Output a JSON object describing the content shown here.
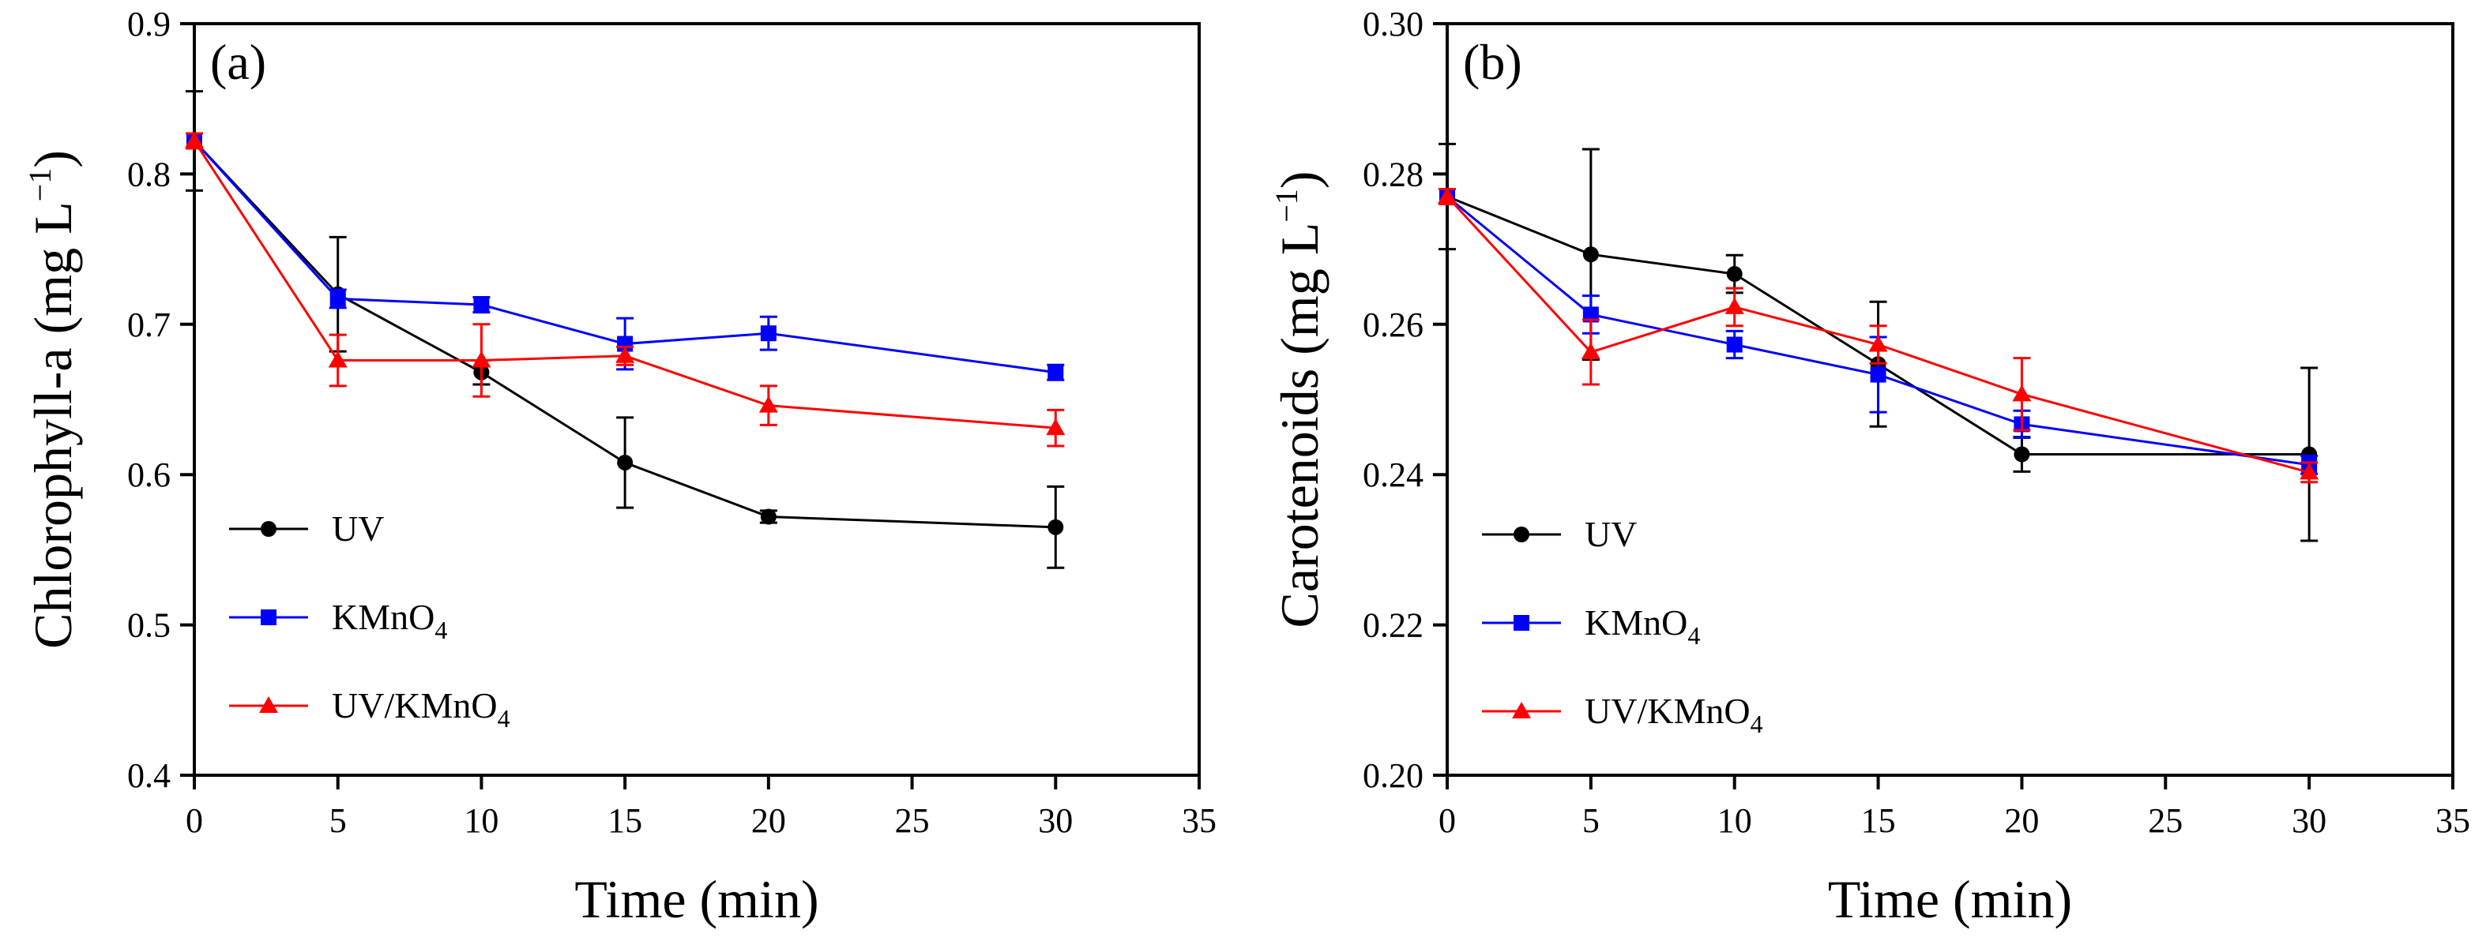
{
  "chart_data": [
    {
      "type": "line",
      "panel_label": "(a)",
      "xlabel": "Time (min)",
      "ylabel": {
        "main": "Chlorophyll-a (mg L",
        "sup": "−1",
        "close": ")"
      },
      "xlim": [
        0,
        35
      ],
      "ylim": [
        0.4,
        0.9
      ],
      "xticks": [
        0,
        5,
        10,
        15,
        20,
        25,
        30,
        35
      ],
      "yticks": [
        0.4,
        0.5,
        0.6,
        0.7,
        0.8,
        0.9
      ],
      "ytick_labels": [
        "0.4",
        "0.5",
        "0.6",
        "0.7",
        "0.8",
        "0.9"
      ],
      "legend_position": "lower-left",
      "series": [
        {
          "name": "UV",
          "label_main": "UV",
          "label_sub": "",
          "label_tail": "",
          "color": "#000000",
          "marker": "circle",
          "x": [
            0,
            5,
            10,
            15,
            20,
            30
          ],
          "y": [
            0.822,
            0.72,
            0.668,
            0.608,
            0.572,
            0.565
          ],
          "err": [
            0.033,
            0.038,
            0.008,
            0.03,
            0.004,
            0.027
          ]
        },
        {
          "name": "KMnO4",
          "label_main": "KMnO",
          "label_sub": "4",
          "label_tail": "",
          "color": "#0000ff",
          "marker": "square",
          "x": [
            0,
            5,
            10,
            15,
            20,
            30
          ],
          "y": [
            0.822,
            0.717,
            0.713,
            0.687,
            0.694,
            0.668
          ],
          "err": [
            0.005,
            0.006,
            0.005,
            0.017,
            0.011,
            0.005
          ]
        },
        {
          "name": "UV/KMnO4",
          "label_main": "UV/KMnO",
          "label_sub": "4",
          "label_tail": "",
          "color": "#ff0000",
          "marker": "triangle",
          "x": [
            0,
            5,
            10,
            15,
            20,
            30
          ],
          "y": [
            0.822,
            0.676,
            0.676,
            0.679,
            0.646,
            0.631
          ],
          "err": [
            0.005,
            0.017,
            0.024,
            0.006,
            0.013,
            0.012
          ]
        }
      ]
    },
    {
      "type": "line",
      "panel_label": "(b)",
      "xlabel": "Time (min)",
      "ylabel": {
        "main": "Carotenoids (mg L",
        "sup": "−1",
        "close": ")"
      },
      "xlim": [
        0,
        35
      ],
      "ylim": [
        0.2,
        0.3
      ],
      "xticks": [
        0,
        5,
        10,
        15,
        20,
        25,
        30,
        35
      ],
      "yticks": [
        0.2,
        0.22,
        0.24,
        0.26,
        0.28,
        0.3
      ],
      "ytick_labels": [
        "0.20",
        "0.22",
        "0.24",
        "0.26",
        "0.28",
        "0.30"
      ],
      "legend_position": "lower-left",
      "series": [
        {
          "name": "UV",
          "label_main": "UV",
          "label_sub": "",
          "label_tail": "",
          "color": "#000000",
          "marker": "circle",
          "x": [
            0,
            5,
            10,
            15,
            20,
            30
          ],
          "y": [
            0.277,
            0.2693,
            0.2667,
            0.2547,
            0.2427,
            0.2427
          ],
          "err": [
            0.007,
            0.014,
            0.0025,
            0.0083,
            0.0023,
            0.0115
          ]
        },
        {
          "name": "KMnO4",
          "label_main": "KMnO",
          "label_sub": "4",
          "label_tail": "",
          "color": "#0000ff",
          "marker": "square",
          "x": [
            0,
            5,
            10,
            15,
            20,
            30
          ],
          "y": [
            0.277,
            0.2613,
            0.2573,
            0.2533,
            0.2467,
            0.2413
          ],
          "err": [
            0.001,
            0.0025,
            0.0018,
            0.005,
            0.0018,
            0.0012
          ]
        },
        {
          "name": "UV/KMnO4",
          "label_main": "UV/KMnO",
          "label_sub": "4",
          "label_tail": "",
          "color": "#ff0000",
          "marker": "triangle",
          "x": [
            0,
            5,
            10,
            15,
            20,
            30
          ],
          "y": [
            0.277,
            0.2563,
            0.2623,
            0.2573,
            0.2507,
            0.2403
          ],
          "err": [
            0.001,
            0.0043,
            0.0025,
            0.0025,
            0.0048,
            0.0013
          ]
        }
      ]
    }
  ]
}
